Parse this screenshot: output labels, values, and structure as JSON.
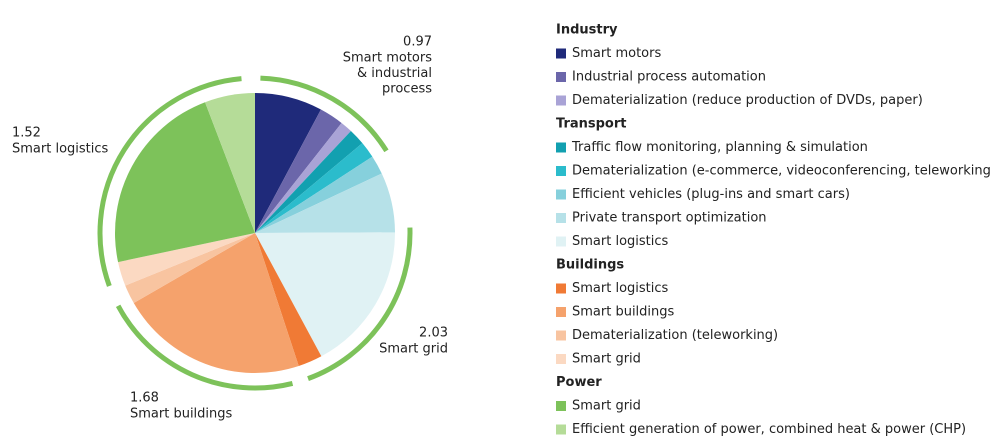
{
  "chart_data": {
    "type": "pie",
    "groups": [
      {
        "name": "Industry",
        "categories": [
          "Smart motors",
          "Industrial process automation",
          "Dematerialization (reduce production of DVDs, paper)"
        ],
        "values": [
          7.8,
          2.8,
          1.4
        ],
        "colors": [
          "#1f2a7a",
          "#6b66aa",
          "#a9a3d6"
        ]
      },
      {
        "name": "Transport",
        "categories": [
          "Traffic flow monitoring, planning & simulation",
          "Dematerialization (e-commerce, videoconferencing, teleworking)",
          "Efficient vehicles (plug-ins and smart cars)",
          "Private transport optimization",
          "Smart logistics"
        ],
        "values": [
          1.9,
          1.9,
          2.2,
          6.9,
          17.2
        ],
        "colors": [
          "#12a0b0",
          "#2bbccc",
          "#86d0dc",
          "#b6e1e8",
          "#e0f2f4"
        ]
      },
      {
        "name": "Buildings",
        "categories": [
          "Smart logistics",
          "Smart buildings",
          "Dematerialization (teleworking)",
          "Smart grid"
        ],
        "values": [
          2.8,
          21.7,
          2.2,
          2.8
        ],
        "colors": [
          "#f07a35",
          "#f5a26c",
          "#f8c4a0",
          "#fbd9c2"
        ]
      },
      {
        "name": "Power",
        "categories": [
          "Smart grid",
          "Efficient generation of power, combined heat & power (CHP)"
        ],
        "values": [
          22.5,
          5.8
        ],
        "colors": [
          "#7dc25a",
          "#b5dc98"
        ]
      }
    ],
    "annotations": [
      {
        "value": 0.97,
        "text": [
          "Smart motors",
          "& industrial",
          "process"
        ]
      },
      {
        "value": 2.03,
        "text": [
          "Smart grid"
        ]
      },
      {
        "value": 1.68,
        "text": [
          "Smart buildings"
        ]
      },
      {
        "value": 1.52,
        "text": [
          "Smart logistics"
        ]
      }
    ],
    "annotation_color": "#7dc25a"
  }
}
